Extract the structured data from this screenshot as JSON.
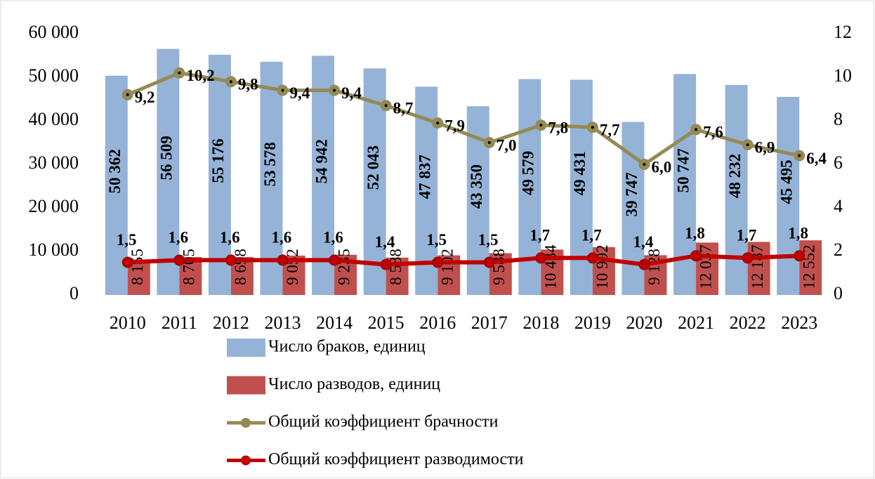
{
  "chart_data": {
    "type": "bar",
    "categories": [
      "2010",
      "2011",
      "2012",
      "2013",
      "2014",
      "2015",
      "2016",
      "2017",
      "2018",
      "2019",
      "2020",
      "2021",
      "2022",
      "2023"
    ],
    "series": [
      {
        "name": "Число браков, единиц",
        "type": "bar",
        "color": "#95b3d7",
        "values": [
          50362,
          56509,
          55176,
          53578,
          54942,
          52043,
          47837,
          43350,
          49579,
          49431,
          39747,
          50747,
          48232,
          45495
        ],
        "value_labels": [
          "50 362",
          "56 509",
          "55 176",
          "53 578",
          "54 942",
          "52 043",
          "47 837",
          "43 350",
          "49 579",
          "49 431",
          "39 747",
          "50 747",
          "48 232",
          "45 495"
        ]
      },
      {
        "name": "Число разводов, единиц",
        "type": "bar",
        "color": "#c0504d",
        "values": [
          8155,
          8705,
          8698,
          9052,
          9235,
          8588,
          9102,
          9588,
          10434,
          10992,
          9128,
          12037,
          12187,
          12552
        ],
        "value_labels": [
          "8 155",
          "8 705",
          "8 698",
          "9 052",
          "9 235",
          "8 588",
          "9 102",
          "9 588",
          "10 434",
          "10 992",
          "9 128",
          "12 037",
          "12 187",
          "12 552"
        ]
      },
      {
        "name": "Общий коэффициент брачности",
        "type": "line",
        "axis": "y2",
        "color": "#948a54",
        "values": [
          9.2,
          10.2,
          9.8,
          9.4,
          9.4,
          8.7,
          7.9,
          7.0,
          7.8,
          7.7,
          6.0,
          7.6,
          6.9,
          6.4
        ],
        "value_labels": [
          "9,2",
          "10,2",
          "9,8",
          "9,4",
          "9,4",
          "8,7",
          "7,9",
          "7,0",
          "7,8",
          "7,7",
          "6,0",
          "7,6",
          "6,9",
          "6,4"
        ]
      },
      {
        "name": "Общий коэффициент разводимости",
        "type": "line",
        "axis": "y2",
        "color": "#c00000",
        "values": [
          1.5,
          1.6,
          1.6,
          1.6,
          1.6,
          1.4,
          1.5,
          1.5,
          1.7,
          1.7,
          1.4,
          1.8,
          1.7,
          1.8
        ],
        "value_labels": [
          "1,5",
          "1,6",
          "1,6",
          "1,6",
          "1,6",
          "1,4",
          "1,5",
          "1,5",
          "1,7",
          "1,7",
          "1,4",
          "1,8",
          "1,7",
          "1,8"
        ]
      }
    ],
    "ylim": [
      0,
      60000
    ],
    "yticks": [
      0,
      {
        "value": 10000,
        "label": "10 000"
      },
      {
        "value": 20000,
        "label": "20 000"
      },
      {
        "value": 30000,
        "label": "30 000"
      },
      {
        "value": 40000,
        "label": "40 000"
      },
      {
        "value": 50000,
        "label": "50 000"
      },
      {
        "value": 60000,
        "label": "60 000"
      }
    ],
    "y2lim": [
      0,
      12
    ],
    "y2ticks": [
      0,
      2,
      4,
      6,
      8,
      10,
      12
    ],
    "legend": "bottom"
  }
}
